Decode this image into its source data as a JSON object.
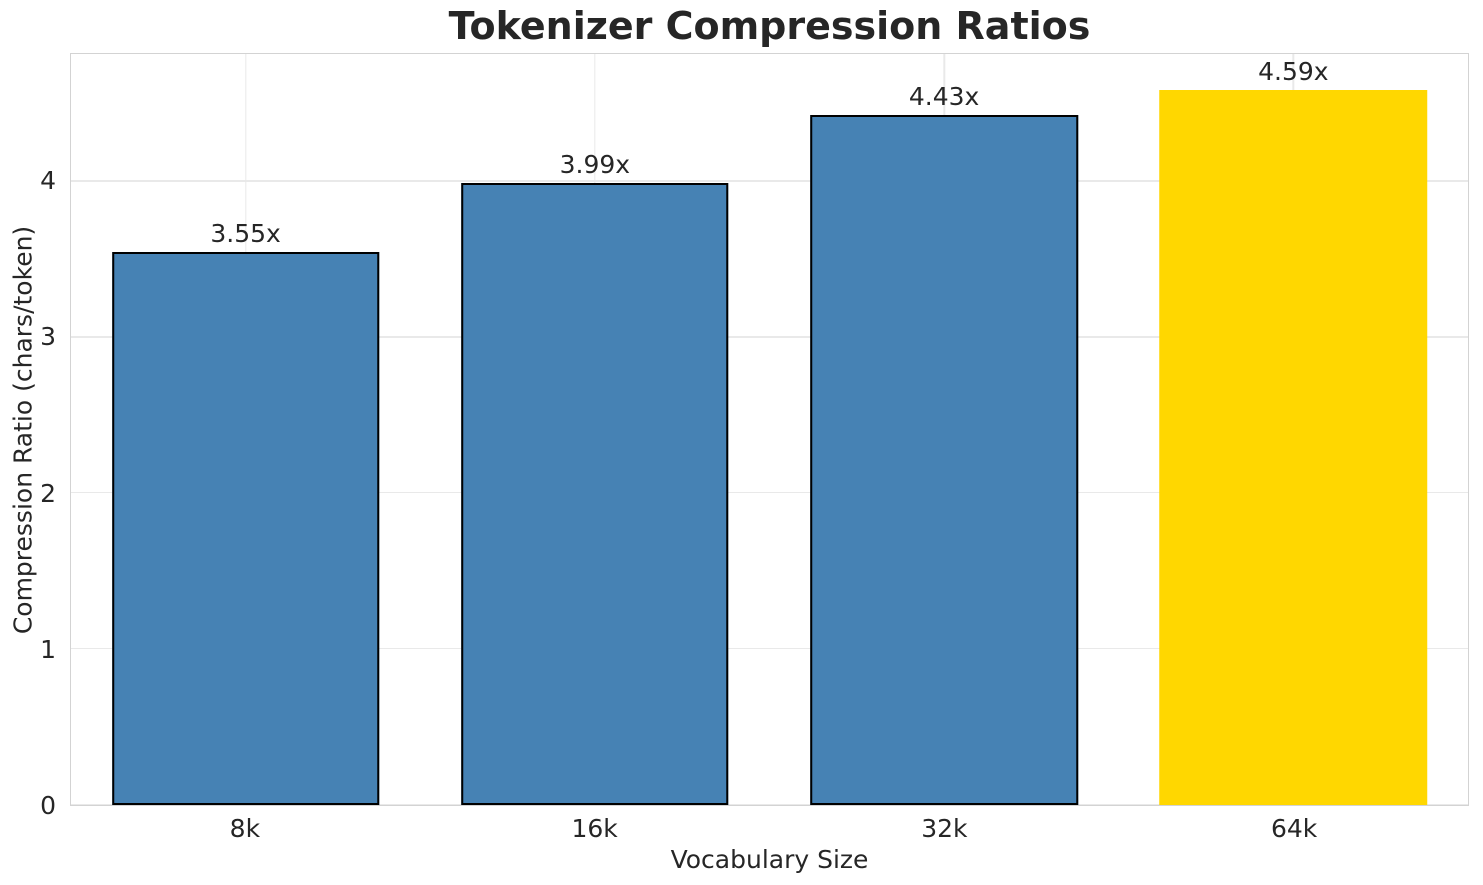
{
  "chart_data": {
    "type": "bar",
    "title": "Tokenizer Compression Ratios",
    "xlabel": "Vocabulary Size",
    "ylabel": "Compression Ratio (chars/token)",
    "categories": [
      "8k",
      "16k",
      "32k",
      "64k"
    ],
    "values": [
      3.55,
      3.99,
      4.43,
      4.59
    ],
    "bar_labels": [
      "3.55x",
      "3.99x",
      "4.43x",
      "4.59x"
    ],
    "bar_colors": [
      "#4682B4",
      "#4682B4",
      "#4682B4",
      "#FFD700"
    ],
    "bar_edge_colors": [
      "#000000",
      "#000000",
      "#000000",
      "none"
    ],
    "yticks": [
      0,
      1,
      2,
      3,
      4
    ],
    "ylim": [
      0,
      4.82
    ],
    "grid": true,
    "legend": "none",
    "style": {
      "background": "#ffffff",
      "text_color": "#262626",
      "grid_color": "#e9e9e9",
      "spine_color": "#d3d3d3",
      "highlight_color": "#FFD700",
      "base_bar_color": "#4682B4"
    }
  }
}
